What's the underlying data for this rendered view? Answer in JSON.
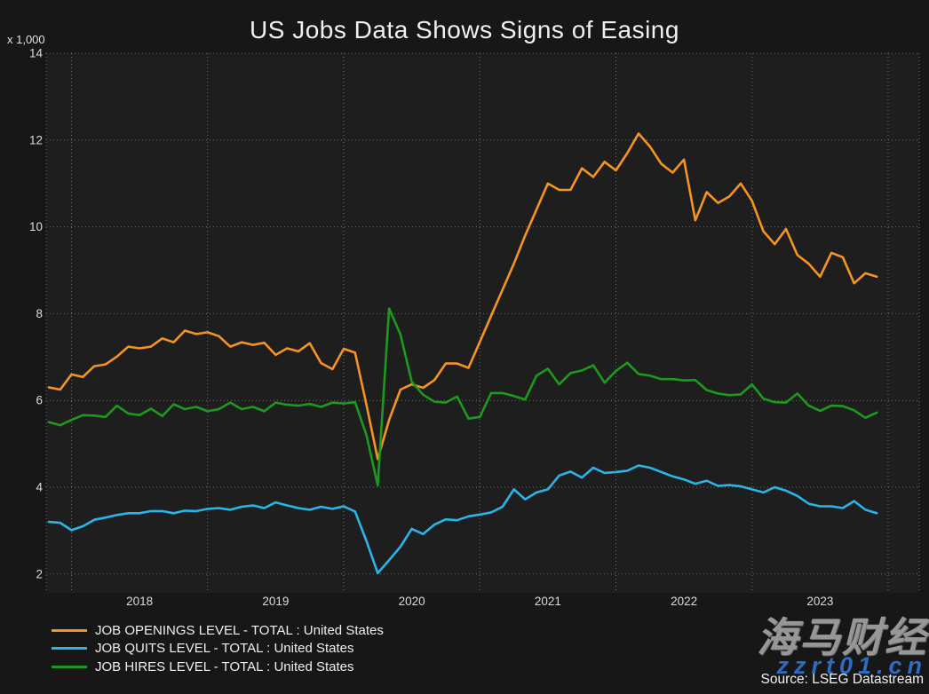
{
  "title": "US Jobs Data Shows Signs of Easing",
  "y_axis_unit": "x 1,000",
  "source_text": "Source: LSEG Datastream",
  "watermark": {
    "brand": "海马财经",
    "url": "zzrt01.cn"
  },
  "colors": {
    "canvas_bg": "#171717",
    "plot_bg": "#1e1e1e",
    "grid": "#bebebe",
    "tick_text": "#dcdcdc",
    "openings": "#f79420",
    "quits": "#2ab5e8",
    "hires": "#1d9a1d"
  },
  "legend": [
    {
      "label": "JOB OPENINGS LEVEL - TOTAL : United States",
      "color": "#f79420"
    },
    {
      "label": "JOB QUITS LEVEL - TOTAL : United States",
      "color": "#2ab5e8"
    },
    {
      "label": "JOB HIRES LEVEL - TOTAL : United States",
      "color": "#1d9a1d"
    }
  ],
  "chart_data": {
    "type": "line",
    "title": "US Jobs Data Shows Signs of Easing",
    "ylabel": "x 1,000",
    "grid": true,
    "legend_position": "bottom-left",
    "ylim": [
      2,
      14
    ],
    "yticks": [
      2,
      4,
      6,
      8,
      10,
      12,
      14
    ],
    "x_start": "2017-11",
    "x_end": "2023-12",
    "frequency": "monthly",
    "x_tick_labels": [
      "2018",
      "2019",
      "2020",
      "2021",
      "2022",
      "2023"
    ],
    "series": [
      {
        "name": "JOB OPENINGS LEVEL - TOTAL : United States",
        "color": "#f79420",
        "values": [
          6.3,
          6.25,
          6.6,
          6.54,
          6.79,
          6.83,
          7.01,
          7.24,
          7.2,
          7.24,
          7.43,
          7.34,
          7.61,
          7.53,
          7.57,
          7.48,
          7.24,
          7.34,
          7.28,
          7.33,
          7.05,
          7.2,
          7.13,
          7.32,
          6.86,
          6.72,
          7.19,
          7.1,
          5.9,
          4.65,
          5.55,
          6.25,
          6.37,
          6.29,
          6.47,
          6.85,
          6.85,
          6.75,
          7.35,
          7.95,
          8.55,
          9.15,
          9.8,
          10.4,
          11.0,
          10.85,
          10.85,
          11.35,
          11.15,
          11.5,
          11.3,
          11.7,
          12.15,
          11.85,
          11.45,
          11.25,
          11.55,
          10.15,
          10.8,
          10.55,
          10.7,
          11.0,
          10.6,
          9.9,
          9.6,
          9.95,
          9.35,
          9.15,
          8.85,
          9.4,
          9.3,
          8.7,
          8.93,
          8.85
        ]
      },
      {
        "name": "JOB QUITS LEVEL - TOTAL : United States",
        "color": "#2ab5e8",
        "values": [
          3.2,
          3.18,
          3.01,
          3.1,
          3.25,
          3.3,
          3.36,
          3.4,
          3.4,
          3.45,
          3.45,
          3.4,
          3.46,
          3.45,
          3.5,
          3.52,
          3.48,
          3.55,
          3.58,
          3.52,
          3.65,
          3.58,
          3.52,
          3.48,
          3.55,
          3.5,
          3.56,
          3.44,
          2.76,
          2.02,
          2.32,
          2.63,
          3.04,
          2.92,
          3.14,
          3.26,
          3.24,
          3.33,
          3.37,
          3.42,
          3.55,
          3.95,
          3.72,
          3.88,
          3.95,
          4.27,
          4.36,
          4.22,
          4.45,
          4.33,
          4.35,
          4.38,
          4.5,
          4.45,
          4.35,
          4.25,
          4.18,
          4.08,
          4.15,
          4.03,
          4.05,
          4.02,
          3.95,
          3.88,
          4.0,
          3.92,
          3.8,
          3.62,
          3.56,
          3.56,
          3.52,
          3.68,
          3.48,
          3.4
        ]
      },
      {
        "name": "JOB HIRES LEVEL - TOTAL : United States",
        "color": "#1d9a1d",
        "values": [
          5.5,
          5.43,
          5.55,
          5.66,
          5.65,
          5.62,
          5.88,
          5.7,
          5.66,
          5.81,
          5.64,
          5.91,
          5.8,
          5.85,
          5.75,
          5.8,
          5.95,
          5.8,
          5.85,
          5.75,
          5.95,
          5.9,
          5.88,
          5.92,
          5.85,
          5.95,
          5.93,
          5.96,
          5.2,
          4.04,
          8.12,
          7.52,
          6.43,
          6.13,
          5.97,
          5.95,
          6.09,
          5.58,
          5.62,
          6.17,
          6.17,
          6.1,
          6.02,
          6.57,
          6.73,
          6.37,
          6.63,
          6.69,
          6.81,
          6.41,
          6.68,
          6.87,
          6.61,
          6.57,
          6.49,
          6.49,
          6.46,
          6.47,
          6.24,
          6.16,
          6.12,
          6.14,
          6.37,
          6.04,
          5.96,
          5.95,
          6.16,
          5.88,
          5.76,
          5.88,
          5.87,
          5.77,
          5.6,
          5.72
        ]
      }
    ]
  }
}
